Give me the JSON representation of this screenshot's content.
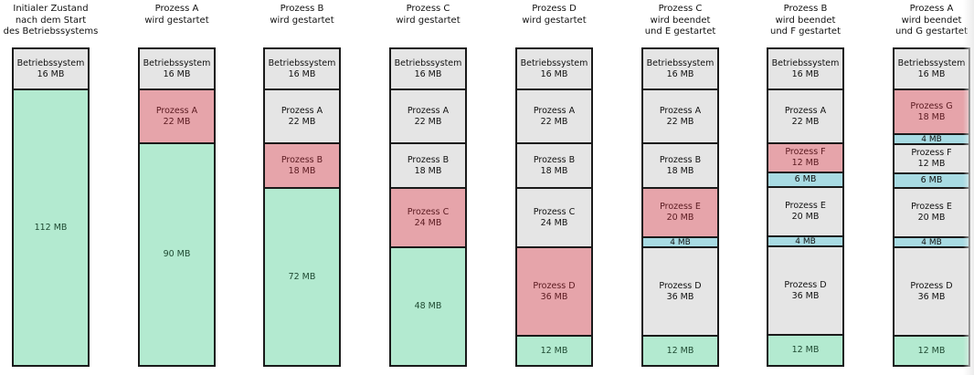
{
  "diagram": {
    "total_mb": 128,
    "colors": {
      "free": "#b3ead0",
      "occupied": "#e5e5e5",
      "new_process": "#e6a4aa",
      "hole": "#a8dbe3",
      "border": "#1a1a1a",
      "text_free": "#1f4a32",
      "text_new": "#5a1a20",
      "text_normal": "#111111"
    },
    "columns": [
      {
        "title": [
          "Initialer Zustand",
          "nach dem Start",
          "des Betriebssystems"
        ],
        "blocks": [
          {
            "label": "Betriebssystem",
            "size": "16 MB",
            "mb": 16,
            "kind": "occupied"
          },
          {
            "label": "",
            "size": "112 MB",
            "mb": 112,
            "kind": "free"
          }
        ]
      },
      {
        "title": [
          "Prozess A",
          "wird gestartet"
        ],
        "blocks": [
          {
            "label": "Betriebssystem",
            "size": "16 MB",
            "mb": 16,
            "kind": "occupied"
          },
          {
            "label": "Prozess A",
            "size": "22 MB",
            "mb": 22,
            "kind": "new_process"
          },
          {
            "label": "",
            "size": "90 MB",
            "mb": 90,
            "kind": "free"
          }
        ]
      },
      {
        "title": [
          "Prozess B",
          "wird gestartet"
        ],
        "blocks": [
          {
            "label": "Betriebssystem",
            "size": "16 MB",
            "mb": 16,
            "kind": "occupied"
          },
          {
            "label": "Prozess A",
            "size": "22 MB",
            "mb": 22,
            "kind": "occupied"
          },
          {
            "label": "Prozess B",
            "size": "18 MB",
            "mb": 18,
            "kind": "new_process"
          },
          {
            "label": "",
            "size": "72 MB",
            "mb": 72,
            "kind": "free"
          }
        ]
      },
      {
        "title": [
          "Prozess C",
          "wird gestartet"
        ],
        "blocks": [
          {
            "label": "Betriebssystem",
            "size": "16 MB",
            "mb": 16,
            "kind": "occupied"
          },
          {
            "label": "Prozess A",
            "size": "22 MB",
            "mb": 22,
            "kind": "occupied"
          },
          {
            "label": "Prozess B",
            "size": "18 MB",
            "mb": 18,
            "kind": "occupied"
          },
          {
            "label": "Prozess C",
            "size": "24 MB",
            "mb": 24,
            "kind": "new_process"
          },
          {
            "label": "",
            "size": "48 MB",
            "mb": 48,
            "kind": "free"
          }
        ]
      },
      {
        "title": [
          "Prozess D",
          "wird gestartet"
        ],
        "blocks": [
          {
            "label": "Betriebssystem",
            "size": "16 MB",
            "mb": 16,
            "kind": "occupied"
          },
          {
            "label": "Prozess A",
            "size": "22 MB",
            "mb": 22,
            "kind": "occupied"
          },
          {
            "label": "Prozess B",
            "size": "18 MB",
            "mb": 18,
            "kind": "occupied"
          },
          {
            "label": "Prozess C",
            "size": "24 MB",
            "mb": 24,
            "kind": "occupied"
          },
          {
            "label": "Prozess D",
            "size": "36 MB",
            "mb": 36,
            "kind": "new_process"
          },
          {
            "label": "",
            "size": "12 MB",
            "mb": 12,
            "kind": "free"
          }
        ]
      },
      {
        "title": [
          "Prozess C",
          "wird beendet",
          "und E gestartet"
        ],
        "blocks": [
          {
            "label": "Betriebssystem",
            "size": "16 MB",
            "mb": 16,
            "kind": "occupied"
          },
          {
            "label": "Prozess A",
            "size": "22 MB",
            "mb": 22,
            "kind": "occupied"
          },
          {
            "label": "Prozess B",
            "size": "18 MB",
            "mb": 18,
            "kind": "occupied"
          },
          {
            "label": "Prozess E",
            "size": "20 MB",
            "mb": 20,
            "kind": "new_process"
          },
          {
            "label": "",
            "size": "4 MB",
            "mb": 4,
            "kind": "hole"
          },
          {
            "label": "Prozess D",
            "size": "36 MB",
            "mb": 36,
            "kind": "occupied"
          },
          {
            "label": "",
            "size": "12 MB",
            "mb": 12,
            "kind": "free"
          }
        ]
      },
      {
        "title": [
          "Prozess B",
          "wird beendet",
          "und F gestartet"
        ],
        "blocks": [
          {
            "label": "Betriebssystem",
            "size": "16 MB",
            "mb": 16,
            "kind": "occupied"
          },
          {
            "label": "Prozess A",
            "size": "22 MB",
            "mb": 22,
            "kind": "occupied"
          },
          {
            "label": "Prozess F",
            "size": "12 MB",
            "mb": 12,
            "kind": "new_process"
          },
          {
            "label": "",
            "size": "6 MB",
            "mb": 6,
            "kind": "hole"
          },
          {
            "label": "Prozess E",
            "size": "20 MB",
            "mb": 20,
            "kind": "occupied"
          },
          {
            "label": "",
            "size": "4 MB",
            "mb": 4,
            "kind": "hole"
          },
          {
            "label": "Prozess D",
            "size": "36 MB",
            "mb": 36,
            "kind": "occupied"
          },
          {
            "label": "",
            "size": "12 MB",
            "mb": 12,
            "kind": "free"
          }
        ]
      },
      {
        "title": [
          "Prozess A",
          "wird beendet",
          "und G gestartet"
        ],
        "blocks": [
          {
            "label": "Betriebssystem",
            "size": "16 MB",
            "mb": 16,
            "kind": "occupied"
          },
          {
            "label": "Prozess G",
            "size": "18 MB",
            "mb": 18,
            "kind": "new_process"
          },
          {
            "label": "",
            "size": "4 MB",
            "mb": 4,
            "kind": "hole"
          },
          {
            "label": "Prozess F",
            "size": "12 MB",
            "mb": 12,
            "kind": "occupied"
          },
          {
            "label": "",
            "size": "6 MB",
            "mb": 6,
            "kind": "hole"
          },
          {
            "label": "Prozess E",
            "size": "20 MB",
            "mb": 20,
            "kind": "occupied"
          },
          {
            "label": "",
            "size": "4 MB",
            "mb": 4,
            "kind": "hole"
          },
          {
            "label": "Prozess D",
            "size": "36 MB",
            "mb": 36,
            "kind": "occupied"
          },
          {
            "label": "",
            "size": "12 MB",
            "mb": 12,
            "kind": "free"
          }
        ]
      }
    ]
  }
}
